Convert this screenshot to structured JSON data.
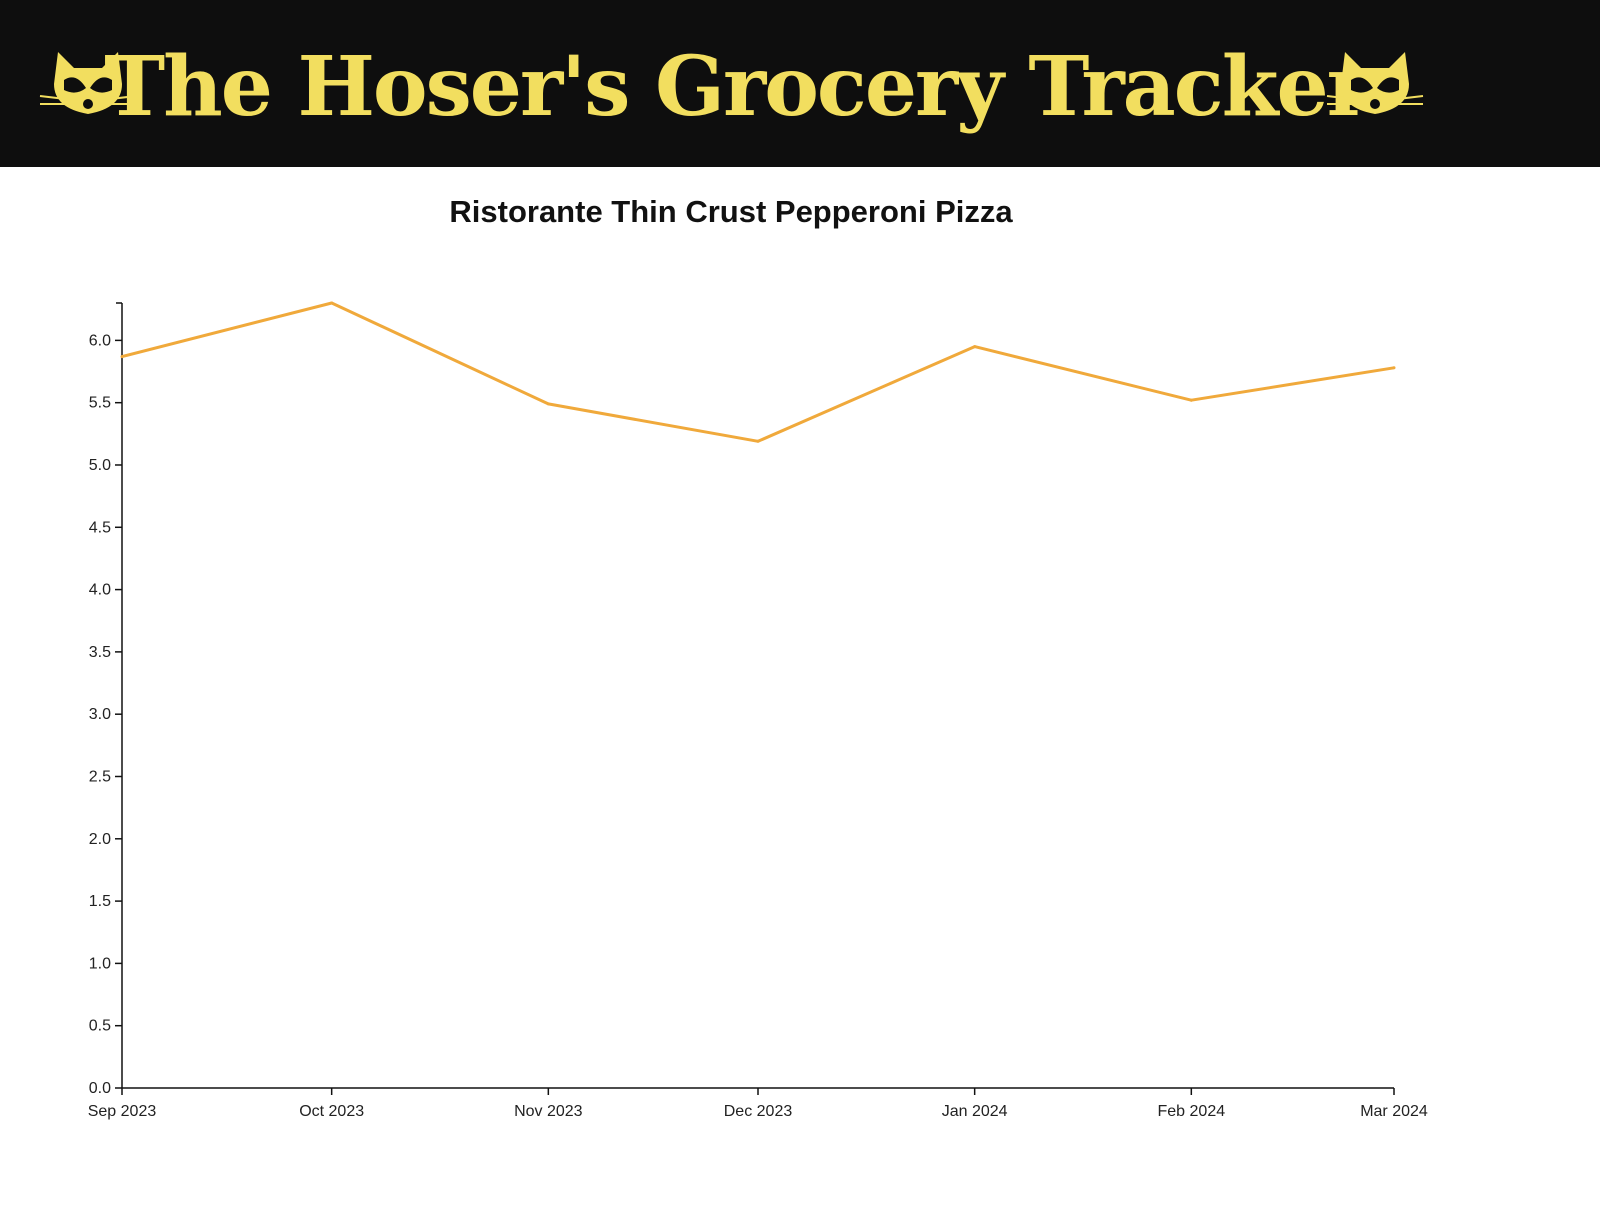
{
  "header": {
    "title": "The Hoser's Grocery Tracker",
    "logo_icon": "raccoon-icon",
    "background": "#0e0e0e",
    "accent": "#f2de5f"
  },
  "chart_data": {
    "type": "line",
    "title": "Ristorante Thin Crust Pepperoni Pizza",
    "xlabel": "",
    "ylabel": "",
    "x_ticks": [
      "Sep 2023",
      "Oct 2023",
      "Nov 2023",
      "Dec 2023",
      "Jan 2024",
      "Feb 2024",
      "Mar 2024"
    ],
    "y_ticks": [
      "0.0",
      "0.5",
      "1.0",
      "1.5",
      "2.0",
      "2.5",
      "3.0",
      "3.5",
      "4.0",
      "4.5",
      "5.0",
      "5.5",
      "6.0"
    ],
    "ylim": [
      0,
      6.3
    ],
    "xlim": [
      "2023-09-01",
      "2024-03-01"
    ],
    "series": [
      {
        "color": "#f0a93b",
        "points": [
          {
            "x": "2023-09-01",
            "y": 5.87
          },
          {
            "x": "2023-10-01",
            "y": 6.3
          },
          {
            "x": "2023-11-01",
            "y": 5.49
          },
          {
            "x": "2023-12-01",
            "y": 5.19
          },
          {
            "x": "2024-01-01",
            "y": 5.95
          },
          {
            "x": "2024-02-01",
            "y": 5.52
          },
          {
            "x": "2024-03-01",
            "y": 5.78
          }
        ]
      }
    ],
    "grid": false,
    "legend": "none"
  }
}
